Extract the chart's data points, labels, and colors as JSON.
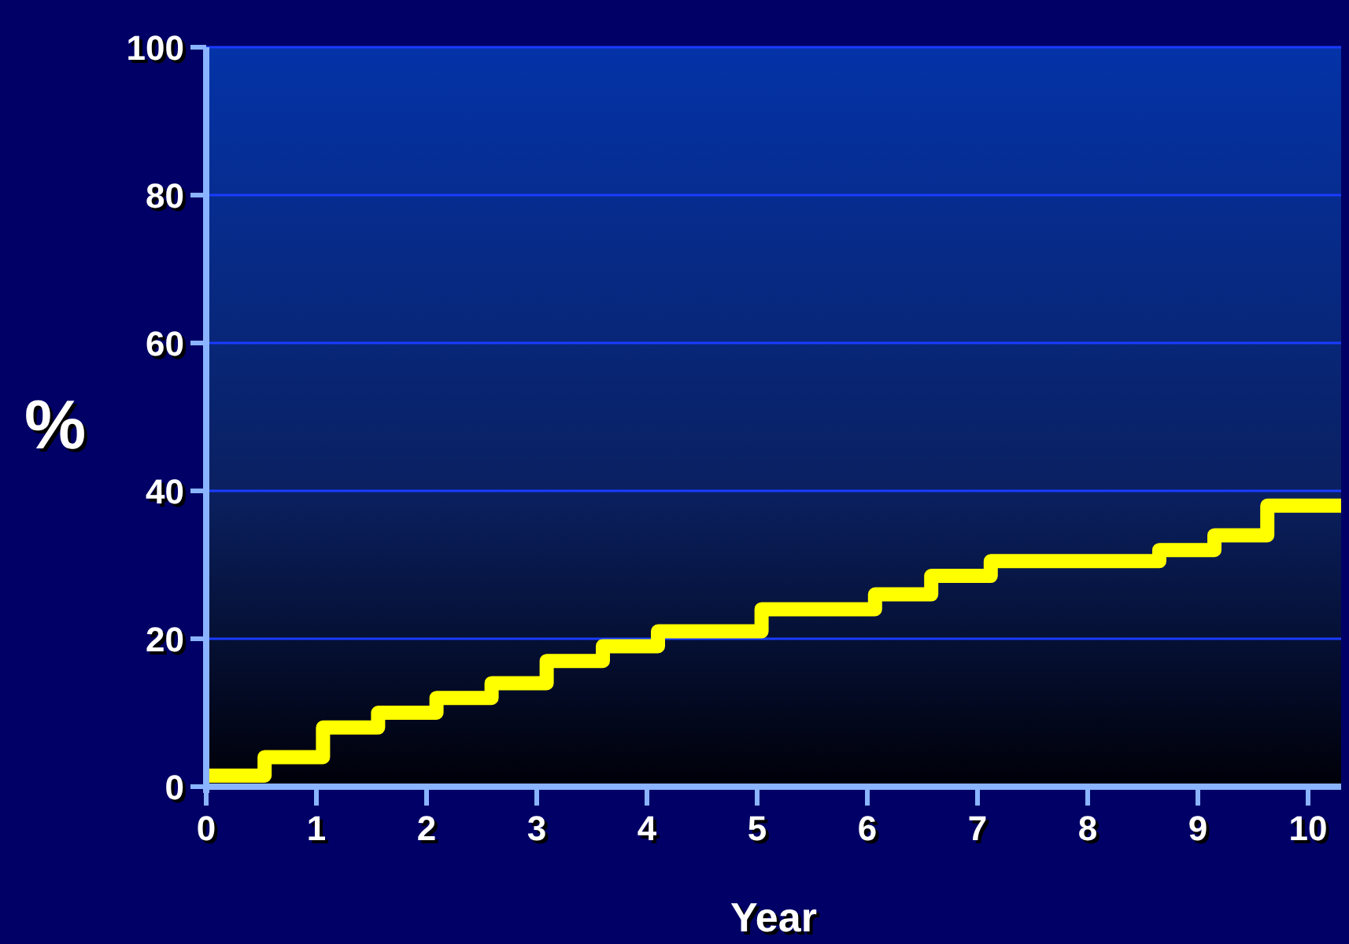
{
  "chart_data": {
    "type": "step",
    "xlabel": "Year",
    "ylabel": "%",
    "x": [
      0,
      0.53,
      1.06,
      1.56,
      2.09,
      2.59,
      3.09,
      3.6,
      4.1,
      5.04,
      6.07,
      6.58,
      7.12,
      8.65,
      9.15,
      9.63,
      10.3
    ],
    "series": [
      {
        "color": "#ffff00",
        "values": [
          1.5,
          4,
          8,
          10,
          12,
          14,
          17,
          19,
          21,
          24,
          26,
          28.5,
          30.5,
          32,
          34,
          38,
          38
        ]
      }
    ],
    "xlim": [
      0,
      10.3
    ],
    "xticks": [
      0,
      1,
      2,
      3,
      4,
      5,
      6,
      7,
      8,
      9,
      10
    ],
    "ylim": [
      0,
      100
    ],
    "yticks": [
      0,
      20,
      40,
      60,
      80,
      100
    ],
    "grid": "y"
  }
}
